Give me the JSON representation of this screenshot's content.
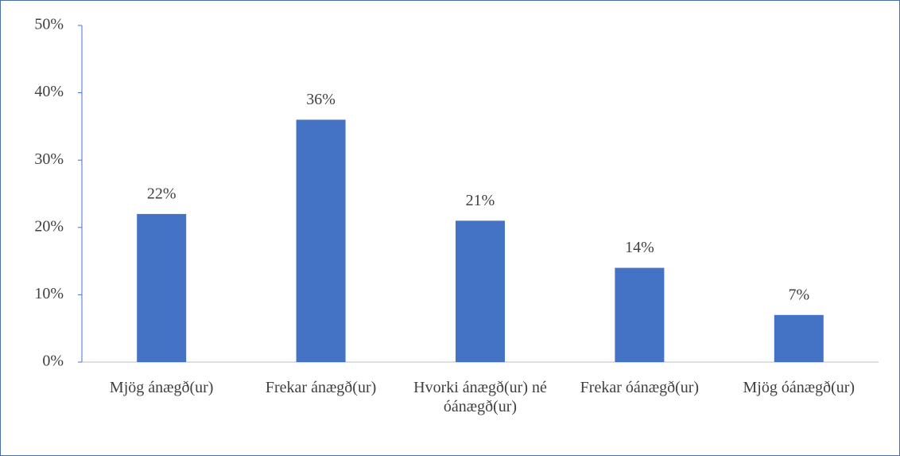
{
  "chart_data": {
    "type": "bar",
    "categories": [
      "Mjög ánægð(ur)",
      "Frekar ánægð(ur)",
      "Hvorki ánægð(ur) né óánægð(ur)",
      "Frekar óánægð(ur)",
      "Mjög óánægð(ur)"
    ],
    "values": [
      22,
      36,
      21,
      14,
      7
    ],
    "value_labels": [
      "22%",
      "36%",
      "21%",
      "14%",
      "7%"
    ],
    "color": "#4472c4",
    "ylim": [
      0,
      50
    ],
    "yticks": [
      {
        "value": 0,
        "label": "0%"
      },
      {
        "value": 10,
        "label": "10%"
      },
      {
        "value": 20,
        "label": "20%"
      },
      {
        "value": 30,
        "label": "30%"
      },
      {
        "value": 40,
        "label": "40%"
      },
      {
        "value": 50,
        "label": "50%"
      }
    ]
  }
}
